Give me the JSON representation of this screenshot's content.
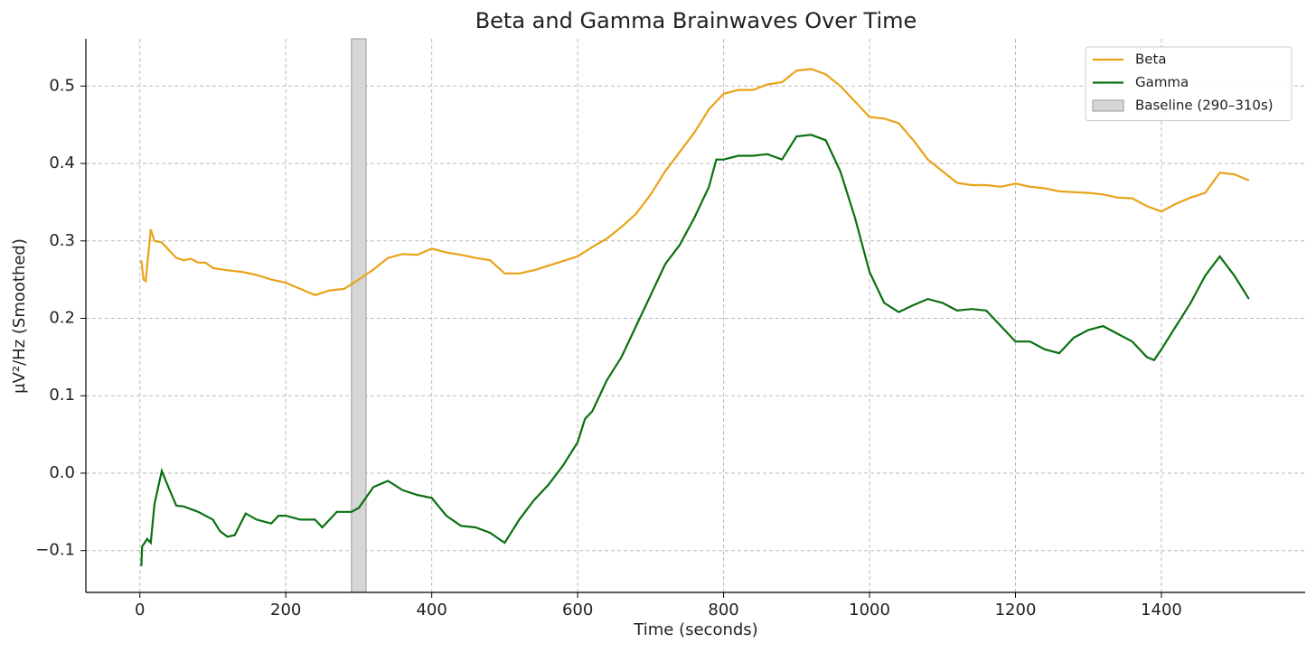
{
  "chart_data": {
    "type": "line",
    "title": "Beta and Gamma Brainwaves Over Time",
    "xlabel": "Time (seconds)",
    "ylabel": "µV²/Hz (Smoothed)",
    "xlim": [
      -74,
      1597
    ],
    "ylim": [
      -0.154,
      0.561
    ],
    "xticks": [
      0,
      200,
      400,
      600,
      800,
      1000,
      1200,
      1400
    ],
    "yticks": [
      {
        "value": -0.1,
        "label": "−0.1"
      },
      {
        "value": 0,
        "label": "0.0"
      },
      0.1,
      0.2,
      0.3,
      0.4,
      0.5
    ],
    "grid": true,
    "legend": "upper right",
    "spans": [
      {
        "label": "Baseline (290–310s)",
        "xmin": 290,
        "xmax": 310,
        "color": "#d6d6d6"
      }
    ],
    "series": [
      {
        "name": "Beta",
        "color": "#e8a317",
        "x": [
          2,
          5,
          8,
          15,
          20,
          30,
          40,
          50,
          60,
          70,
          80,
          90,
          100,
          120,
          140,
          160,
          180,
          200,
          220,
          240,
          260,
          280,
          300,
          320,
          340,
          360,
          380,
          400,
          420,
          440,
          460,
          480,
          500,
          520,
          540,
          560,
          580,
          600,
          620,
          640,
          660,
          680,
          700,
          720,
          740,
          760,
          780,
          800,
          820,
          840,
          860,
          880,
          900,
          920,
          940,
          960,
          980,
          1000,
          1020,
          1040,
          1060,
          1080,
          1100,
          1120,
          1140,
          1160,
          1180,
          1200,
          1220,
          1240,
          1260,
          1280,
          1300,
          1320,
          1340,
          1360,
          1380,
          1400,
          1420,
          1440,
          1460,
          1480,
          1500,
          1520
        ],
        "values": [
          0.275,
          0.25,
          0.248,
          0.315,
          0.3,
          0.298,
          0.288,
          0.278,
          0.275,
          0.277,
          0.272,
          0.272,
          0.265,
          0.262,
          0.26,
          0.256,
          0.25,
          0.246,
          0.238,
          0.23,
          0.236,
          0.238,
          0.25,
          0.263,
          0.278,
          0.283,
          0.282,
          0.29,
          0.285,
          0.282,
          0.278,
          0.275,
          0.258,
          0.258,
          0.262,
          0.268,
          0.274,
          0.28,
          0.292,
          0.303,
          0.318,
          0.335,
          0.36,
          0.39,
          0.415,
          0.44,
          0.47,
          0.49,
          0.495,
          0.495,
          0.502,
          0.505,
          0.52,
          0.522,
          0.515,
          0.5,
          0.48,
          0.46,
          0.458,
          0.452,
          0.43,
          0.405,
          0.39,
          0.375,
          0.372,
          0.372,
          0.37,
          0.374,
          0.37,
          0.368,
          0.364,
          0.363,
          0.362,
          0.36,
          0.356,
          0.355,
          0.345,
          0.338,
          0.348,
          0.356,
          0.362,
          0.388,
          0.386,
          0.378
        ]
      },
      {
        "name": "Gamma",
        "color": "#0a7010",
        "x": [
          2,
          3,
          10,
          15,
          20,
          30,
          40,
          50,
          60,
          80,
          100,
          110,
          120,
          130,
          145,
          160,
          180,
          190,
          200,
          220,
          240,
          250,
          270,
          290,
          300,
          320,
          340,
          360,
          380,
          400,
          420,
          440,
          460,
          480,
          500,
          520,
          540,
          560,
          580,
          600,
          610,
          620,
          640,
          660,
          680,
          700,
          720,
          740,
          760,
          780,
          790,
          800,
          820,
          840,
          860,
          880,
          900,
          920,
          940,
          960,
          980,
          1000,
          1020,
          1040,
          1060,
          1080,
          1100,
          1120,
          1140,
          1160,
          1180,
          1200,
          1220,
          1240,
          1260,
          1280,
          1300,
          1320,
          1340,
          1360,
          1380,
          1390,
          1400,
          1420,
          1440,
          1460,
          1480,
          1500,
          1520
        ],
        "values": [
          -0.12,
          -0.095,
          -0.085,
          -0.09,
          -0.04,
          0.003,
          -0.02,
          -0.042,
          -0.043,
          -0.05,
          -0.06,
          -0.075,
          -0.082,
          -0.08,
          -0.052,
          -0.06,
          -0.065,
          -0.055,
          -0.055,
          -0.06,
          -0.06,
          -0.07,
          -0.05,
          -0.05,
          -0.045,
          -0.018,
          -0.01,
          -0.022,
          -0.028,
          -0.032,
          -0.055,
          -0.068,
          -0.07,
          -0.077,
          -0.09,
          -0.06,
          -0.035,
          -0.015,
          0.01,
          0.04,
          0.07,
          0.08,
          0.12,
          0.15,
          0.19,
          0.23,
          0.27,
          0.295,
          0.33,
          0.37,
          0.405,
          0.405,
          0.41,
          0.41,
          0.412,
          0.405,
          0.435,
          0.437,
          0.43,
          0.39,
          0.33,
          0.26,
          0.22,
          0.208,
          0.217,
          0.225,
          0.22,
          0.21,
          0.212,
          0.21,
          0.19,
          0.17,
          0.17,
          0.16,
          0.155,
          0.175,
          0.185,
          0.19,
          0.18,
          0.17,
          0.15,
          0.146,
          0.16,
          0.19,
          0.22,
          0.255,
          0.28,
          0.255,
          0.225
        ]
      }
    ]
  }
}
